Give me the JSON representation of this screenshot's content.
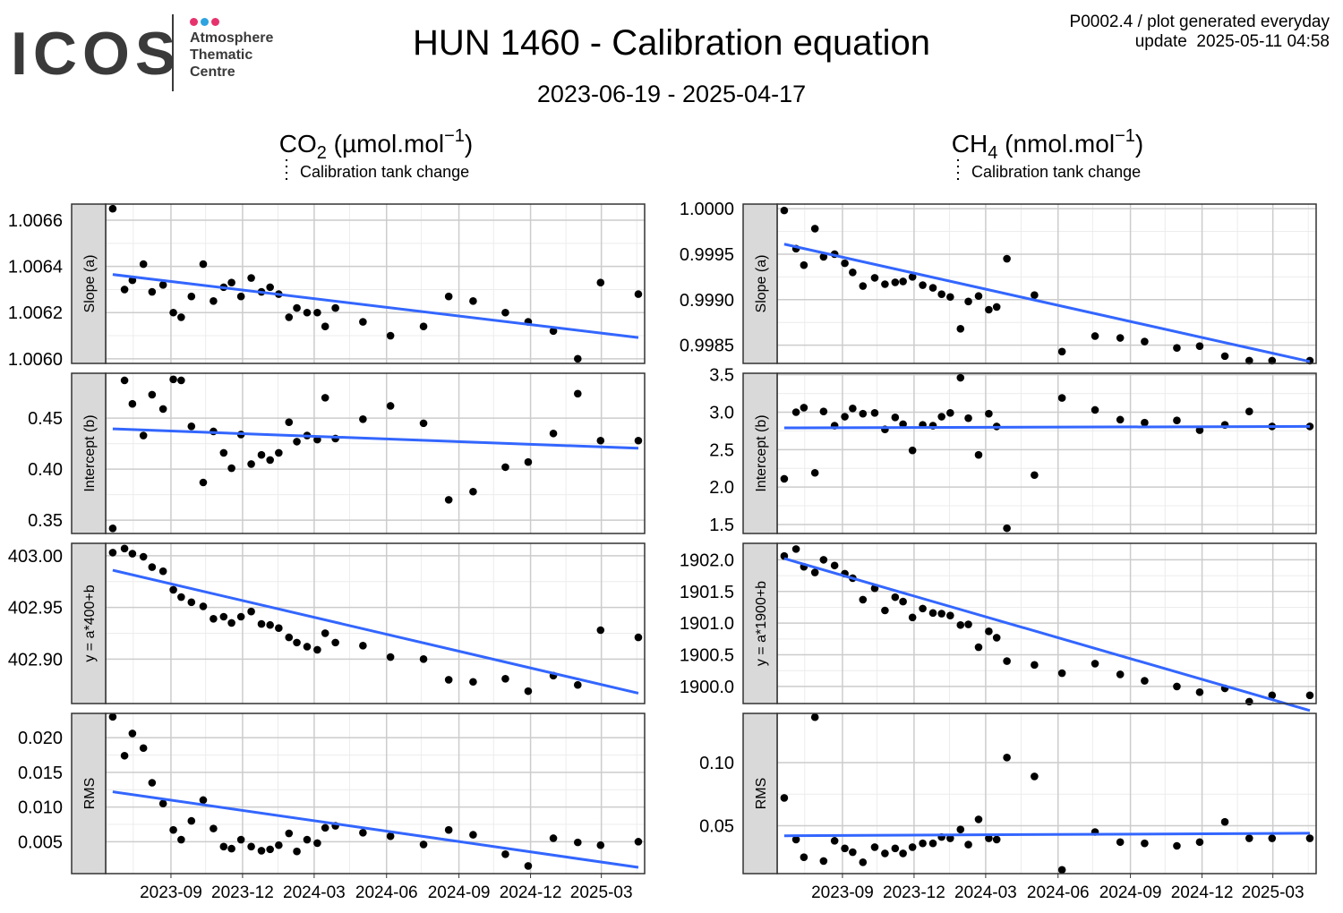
{
  "header": {
    "logo_text": "ICOS",
    "logo_sub": [
      "Atmosphere",
      "Thematic",
      "Centre"
    ],
    "logo_dot_colors": [
      "#e6336e",
      "#2ea3e0",
      "#e6336e"
    ],
    "title": "HUN 1460 - Calibration equation",
    "date_range": "2023-06-19 - 2025-04-17",
    "info_line1": "P0002.4 / plot generated everyday",
    "info_line2": "update  2025-05-11 04:58"
  },
  "legend_text": "Calibration tank change",
  "x_tick_labels": [
    "2023-09",
    "2023-12",
    "2024-03",
    "2024-06",
    "2024-09",
    "2024-12",
    "2025-03"
  ],
  "colors": {
    "points": "#000000",
    "trend": "#3366ff",
    "strip": "#d9d9d9",
    "grid_major": "#cccccc",
    "grid_minor": "#ececec"
  },
  "chart_data": [
    {
      "type": "scatter",
      "column_title": "CO₂ (µmol.mol⁻¹)",
      "title": "Slope (a)",
      "ylim": [
        1.00598,
        1.00667
      ],
      "yticks": [
        1.006,
        1.0062,
        1.0064,
        1.0066
      ],
      "ytick_labels": [
        "1.0060",
        "1.0062",
        "1.0064",
        "1.0066"
      ],
      "x": [
        "2023-06-19",
        "2023-07-04",
        "2023-07-14",
        "2023-07-28",
        "2023-08-08",
        "2023-08-22",
        "2023-09-04",
        "2023-09-14",
        "2023-09-27",
        "2023-10-12",
        "2023-10-25",
        "2023-11-07",
        "2023-11-17",
        "2023-11-29",
        "2023-12-12",
        "2023-12-25",
        "2024-01-05",
        "2024-01-16",
        "2024-01-29",
        "2024-02-08",
        "2024-02-21",
        "2024-03-05",
        "2024-03-15",
        "2024-03-28",
        "2024-05-02",
        "2024-06-06",
        "2024-07-18",
        "2024-08-19",
        "2024-09-19",
        "2024-10-30",
        "2024-11-28",
        "2024-12-30",
        "2025-01-30",
        "2025-02-28",
        "2025-04-17"
      ],
      "y": [
        1.00665,
        1.0063,
        1.00634,
        1.00641,
        1.00629,
        1.00632,
        1.0062,
        1.00618,
        1.00627,
        1.00641,
        1.00625,
        1.00631,
        1.00633,
        1.00627,
        1.00635,
        1.00629,
        1.00631,
        1.00628,
        1.00618,
        1.00622,
        1.0062,
        1.0062,
        1.00614,
        1.00622,
        1.00616,
        1.0061,
        1.00614,
        1.00627,
        1.00625,
        1.0062,
        1.00616,
        1.00612,
        1.006,
        1.00633,
        1.00628
      ],
      "trend": [
        [
          "2023-06-19",
          1.006365
        ],
        [
          "2025-04-17",
          1.006092
        ]
      ]
    },
    {
      "type": "scatter",
      "column_title": "CO₂ (µmol.mol⁻¹)",
      "title": "Intercept (b)",
      "ylim": [
        0.337,
        0.494
      ],
      "yticks": [
        0.35,
        0.4,
        0.45
      ],
      "ytick_labels": [
        "0.35",
        "0.40",
        "0.45"
      ],
      "x": [
        "2023-06-19",
        "2023-07-04",
        "2023-07-14",
        "2023-07-28",
        "2023-08-08",
        "2023-08-22",
        "2023-09-04",
        "2023-09-14",
        "2023-09-27",
        "2023-10-12",
        "2023-10-25",
        "2023-11-07",
        "2023-11-17",
        "2023-11-29",
        "2023-12-12",
        "2023-12-25",
        "2024-01-05",
        "2024-01-16",
        "2024-01-29",
        "2024-02-08",
        "2024-02-21",
        "2024-03-05",
        "2024-03-15",
        "2024-03-28",
        "2024-05-02",
        "2024-06-06",
        "2024-07-18",
        "2024-08-19",
        "2024-09-19",
        "2024-10-30",
        "2024-11-28",
        "2024-12-30",
        "2025-01-30",
        "2025-02-28",
        "2025-04-17"
      ],
      "y": [
        0.342,
        0.487,
        0.464,
        0.433,
        0.473,
        0.459,
        0.488,
        0.487,
        0.442,
        0.387,
        0.437,
        0.416,
        0.401,
        0.434,
        0.405,
        0.414,
        0.409,
        0.416,
        0.446,
        0.427,
        0.433,
        0.429,
        0.47,
        0.43,
        0.449,
        0.462,
        0.445,
        0.37,
        0.378,
        0.402,
        0.407,
        0.435,
        0.474,
        0.428,
        0.428
      ],
      "trend": [
        [
          "2023-06-19",
          0.4395
        ],
        [
          "2025-04-17",
          0.4205
        ]
      ]
    },
    {
      "type": "scatter",
      "column_title": "CO₂ (µmol.mol⁻¹)",
      "title": "y = a*400+b",
      "ylim": [
        402.857,
        403.012
      ],
      "yticks": [
        402.9,
        402.95,
        403.0
      ],
      "ytick_labels": [
        "402.90",
        "402.95",
        "403.00"
      ],
      "x": [
        "2023-06-19",
        "2023-07-04",
        "2023-07-14",
        "2023-07-28",
        "2023-08-08",
        "2023-08-22",
        "2023-09-04",
        "2023-09-14",
        "2023-09-27",
        "2023-10-12",
        "2023-10-25",
        "2023-11-07",
        "2023-11-17",
        "2023-11-29",
        "2023-12-12",
        "2023-12-25",
        "2024-01-05",
        "2024-01-16",
        "2024-01-29",
        "2024-02-08",
        "2024-02-21",
        "2024-03-05",
        "2024-03-15",
        "2024-03-28",
        "2024-05-02",
        "2024-06-06",
        "2024-07-18",
        "2024-08-19",
        "2024-09-19",
        "2024-10-30",
        "2024-11-28",
        "2024-12-30",
        "2025-01-30",
        "2025-02-28",
        "2025-04-17"
      ],
      "y": [
        403.003,
        403.007,
        403.002,
        402.999,
        402.989,
        402.985,
        402.967,
        402.96,
        402.955,
        402.951,
        402.939,
        402.941,
        402.935,
        402.941,
        402.946,
        402.934,
        402.933,
        402.93,
        402.921,
        402.916,
        402.912,
        402.909,
        402.925,
        402.916,
        402.913,
        402.902,
        402.9,
        402.88,
        402.878,
        402.881,
        402.869,
        402.884,
        402.875,
        402.928,
        402.921
      ],
      "trend": [
        [
          "2023-06-19",
          402.986
        ],
        [
          "2025-04-17",
          402.867
        ]
      ]
    },
    {
      "type": "scatter",
      "column_title": "CO₂ (µmol.mol⁻¹)",
      "title": "RMS",
      "ylim": [
        0.0004,
        0.0235
      ],
      "yticks": [
        0.005,
        0.01,
        0.015,
        0.02
      ],
      "ytick_labels": [
        "0.005",
        "0.010",
        "0.015",
        "0.020"
      ],
      "x": [
        "2023-06-19",
        "2023-07-04",
        "2023-07-14",
        "2023-07-28",
        "2023-08-08",
        "2023-08-22",
        "2023-09-04",
        "2023-09-14",
        "2023-09-27",
        "2023-10-12",
        "2023-10-25",
        "2023-11-07",
        "2023-11-17",
        "2023-11-29",
        "2023-12-12",
        "2023-12-25",
        "2024-01-05",
        "2024-01-16",
        "2024-01-29",
        "2024-02-08",
        "2024-02-21",
        "2024-03-05",
        "2024-03-15",
        "2024-03-28",
        "2024-05-02",
        "2024-06-06",
        "2024-07-18",
        "2024-08-19",
        "2024-09-19",
        "2024-10-30",
        "2024-11-28",
        "2024-12-30",
        "2025-01-30",
        "2025-02-28",
        "2025-04-17"
      ],
      "y": [
        0.023,
        0.0174,
        0.0206,
        0.0185,
        0.0135,
        0.0105,
        0.0067,
        0.0053,
        0.008,
        0.011,
        0.0069,
        0.0043,
        0.004,
        0.0053,
        0.0043,
        0.0037,
        0.0039,
        0.0045,
        0.0062,
        0.0036,
        0.0053,
        0.0048,
        0.007,
        0.0073,
        0.0063,
        0.0058,
        0.0046,
        0.0067,
        0.006,
        0.0032,
        0.0015,
        0.0055,
        0.0049,
        0.0045,
        0.005
      ],
      "trend": [
        [
          "2023-06-19",
          0.0122
        ],
        [
          "2025-04-17",
          0.0013
        ]
      ]
    },
    {
      "type": "scatter",
      "column_title": "CH₄ (nmol.mol⁻¹)",
      "title": "Slope (a)",
      "ylim": [
        0.9983,
        1.00005
      ],
      "yticks": [
        0.9985,
        0.999,
        0.9995,
        1.0
      ],
      "ytick_labels": [
        "0.9985",
        "0.9990",
        "0.9995",
        "1.0000"
      ],
      "x": [
        "2023-06-19",
        "2023-07-04",
        "2023-07-14",
        "2023-07-28",
        "2023-08-08",
        "2023-08-22",
        "2023-09-04",
        "2023-09-14",
        "2023-09-27",
        "2023-10-12",
        "2023-10-25",
        "2023-11-07",
        "2023-11-17",
        "2023-11-29",
        "2023-12-12",
        "2023-12-25",
        "2024-01-05",
        "2024-01-16",
        "2024-01-29",
        "2024-02-08",
        "2024-02-21",
        "2024-03-05",
        "2024-03-15",
        "2024-03-28",
        "2024-05-02",
        "2024-06-06",
        "2024-07-18",
        "2024-08-19",
        "2024-09-19",
        "2024-10-30",
        "2024-11-28",
        "2024-12-30",
        "2025-01-30",
        "2025-02-28",
        "2025-04-17"
      ],
      "y": [
        0.99998,
        0.99956,
        0.99938,
        0.99978,
        0.99947,
        0.9995,
        0.9994,
        0.9993,
        0.99915,
        0.99924,
        0.99917,
        0.99919,
        0.9992,
        0.99925,
        0.99916,
        0.99913,
        0.99906,
        0.99903,
        0.99868,
        0.99898,
        0.99904,
        0.99889,
        0.99892,
        0.99945,
        0.99905,
        0.99843,
        0.9986,
        0.99858,
        0.99854,
        0.99847,
        0.99849,
        0.99838,
        0.99833,
        0.99833,
        0.99833
      ],
      "trend": [
        [
          "2023-06-19",
          0.99961
        ],
        [
          "2025-04-17",
          0.99832
        ]
      ]
    },
    {
      "type": "scatter",
      "column_title": "CH₄ (nmol.mol⁻¹)",
      "title": "Intercept (b)",
      "ylim": [
        1.38,
        3.52
      ],
      "yticks": [
        1.5,
        2.0,
        2.5,
        3.0,
        3.5
      ],
      "ytick_labels": [
        "1.5",
        "2.0",
        "2.5",
        "3.0",
        "3.5"
      ],
      "x": [
        "2023-06-19",
        "2023-07-04",
        "2023-07-14",
        "2023-07-28",
        "2023-08-08",
        "2023-08-22",
        "2023-09-04",
        "2023-09-14",
        "2023-09-27",
        "2023-10-12",
        "2023-10-25",
        "2023-11-07",
        "2023-11-17",
        "2023-11-29",
        "2023-12-12",
        "2023-12-25",
        "2024-01-05",
        "2024-01-16",
        "2024-01-29",
        "2024-02-08",
        "2024-02-21",
        "2024-03-05",
        "2024-03-15",
        "2024-03-28",
        "2024-05-02",
        "2024-06-06",
        "2024-07-18",
        "2024-08-19",
        "2024-09-19",
        "2024-10-30",
        "2024-11-28",
        "2024-12-30",
        "2025-01-30",
        "2025-02-28",
        "2025-04-17"
      ],
      "y": [
        2.11,
        3.0,
        3.06,
        2.19,
        3.01,
        2.82,
        2.94,
        3.05,
        2.98,
        2.99,
        2.77,
        2.93,
        2.84,
        2.49,
        2.83,
        2.82,
        2.94,
        2.99,
        3.46,
        2.92,
        2.43,
        2.98,
        2.81,
        1.45,
        2.16,
        3.19,
        3.03,
        2.9,
        2.86,
        2.89,
        2.76,
        2.83,
        3.01,
        2.81,
        2.81
      ],
      "trend": [
        [
          "2023-06-19",
          2.79
        ],
        [
          "2025-04-17",
          2.81
        ]
      ]
    },
    {
      "type": "scatter",
      "column_title": "CH₄ (nmol.mol⁻¹)",
      "title": "y = a*1900+b",
      "ylim": [
        1899.73,
        1902.26
      ],
      "yticks": [
        1900.0,
        1900.5,
        1901.0,
        1901.5,
        1902.0
      ],
      "ytick_labels": [
        "1900.0",
        "1900.5",
        "1901.0",
        "1901.5",
        "1902.0"
      ],
      "x": [
        "2023-06-19",
        "2023-07-04",
        "2023-07-14",
        "2023-07-28",
        "2023-08-08",
        "2023-08-22",
        "2023-09-04",
        "2023-09-14",
        "2023-09-27",
        "2023-10-12",
        "2023-10-25",
        "2023-11-07",
        "2023-11-17",
        "2023-11-29",
        "2023-12-12",
        "2023-12-25",
        "2024-01-05",
        "2024-01-16",
        "2024-01-29",
        "2024-02-08",
        "2024-02-21",
        "2024-03-05",
        "2024-03-15",
        "2024-03-28",
        "2024-05-02",
        "2024-06-06",
        "2024-07-18",
        "2024-08-19",
        "2024-09-19",
        "2024-10-30",
        "2024-11-28",
        "2024-12-30",
        "2025-01-30",
        "2025-02-28",
        "2025-04-17"
      ],
      "y": [
        1902.06,
        1902.17,
        1901.89,
        1901.8,
        1902.0,
        1901.91,
        1901.78,
        1901.71,
        1901.37,
        1901.55,
        1901.2,
        1901.41,
        1901.34,
        1901.09,
        1901.23,
        1901.16,
        1901.15,
        1901.12,
        1900.97,
        1900.98,
        1900.62,
        1900.87,
        1900.77,
        1900.4,
        1900.34,
        1900.21,
        1900.36,
        1900.19,
        1900.09,
        1900.0,
        1899.91,
        1899.97,
        1899.76,
        1899.86,
        1899.86
      ],
      "trend": [
        [
          "2023-06-19",
          1902.02
        ],
        [
          "2025-04-17",
          1899.62
        ]
      ]
    },
    {
      "type": "scatter",
      "column_title": "CH₄ (nmol.mol⁻¹)",
      "title": "RMS",
      "ylim": [
        0.012,
        0.139
      ],
      "yticks": [
        0.05,
        0.1
      ],
      "ytick_labels": [
        "0.05",
        "0.10"
      ],
      "x": [
        "2023-06-19",
        "2023-07-04",
        "2023-07-14",
        "2023-07-28",
        "2023-08-08",
        "2023-08-22",
        "2023-09-04",
        "2023-09-14",
        "2023-09-27",
        "2023-10-12",
        "2023-10-25",
        "2023-11-07",
        "2023-11-17",
        "2023-11-29",
        "2023-12-12",
        "2023-12-25",
        "2024-01-05",
        "2024-01-16",
        "2024-01-29",
        "2024-02-08",
        "2024-02-21",
        "2024-03-05",
        "2024-03-15",
        "2024-03-28",
        "2024-05-02",
        "2024-06-06",
        "2024-07-18",
        "2024-08-19",
        "2024-09-19",
        "2024-10-30",
        "2024-11-28",
        "2024-12-30",
        "2025-01-30",
        "2025-02-28",
        "2025-04-17"
      ],
      "y": [
        0.072,
        0.039,
        0.025,
        0.136,
        0.022,
        0.038,
        0.032,
        0.029,
        0.021,
        0.033,
        0.028,
        0.032,
        0.028,
        0.033,
        0.036,
        0.036,
        0.041,
        0.04,
        0.047,
        0.035,
        0.055,
        0.04,
        0.039,
        0.104,
        0.089,
        0.015,
        0.045,
        0.037,
        0.036,
        0.034,
        0.037,
        0.053,
        0.04,
        0.04,
        0.04
      ],
      "trend": [
        [
          "2023-06-19",
          0.042
        ],
        [
          "2025-04-17",
          0.044
        ]
      ]
    }
  ]
}
